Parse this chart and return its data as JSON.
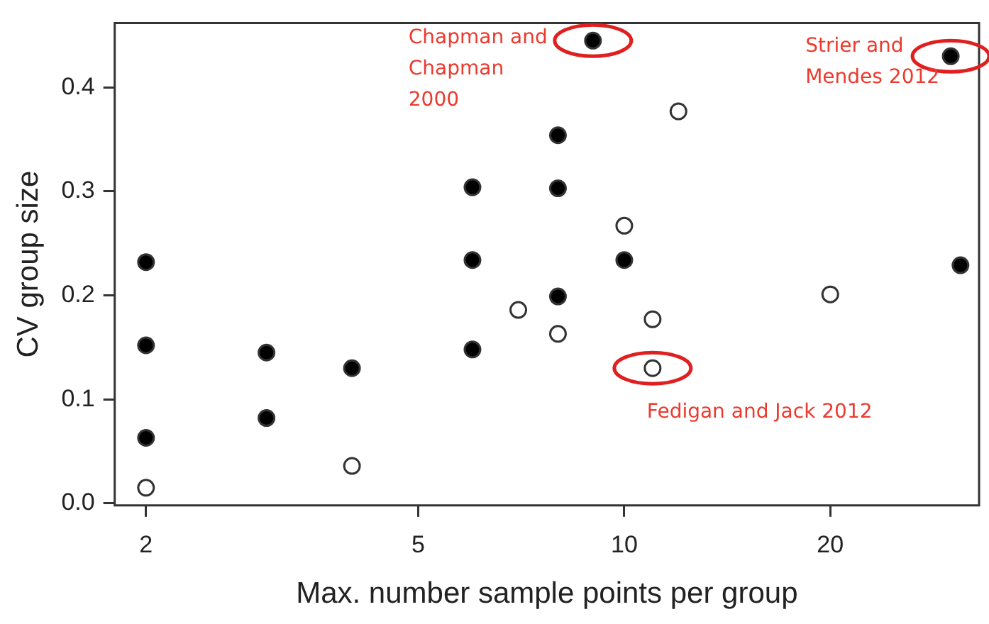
{
  "chart_data": {
    "type": "scatter",
    "xlabel": "Max. number sample points per group",
    "ylabel": "CV group size",
    "log": "x",
    "marker": "circle",
    "grid": false,
    "xlim": [
      1.8,
      33
    ],
    "xticks": [
      2,
      5,
      10,
      20
    ],
    "ylim": [
      -0.002,
      0.462
    ],
    "yticks": [
      {
        "value": 0,
        "label": "0.0"
      },
      {
        "value": 0.1,
        "label": "0.1"
      },
      {
        "value": 0.2,
        "label": "0.2"
      },
      {
        "value": 0.3,
        "label": "0.3"
      },
      {
        "value": 0.4,
        "label": "0.4"
      }
    ],
    "series": [
      {
        "color": "#000000",
        "x": [
          2,
          2,
          2,
          3,
          3,
          4,
          6,
          6,
          6,
          8,
          8,
          8,
          9,
          10,
          30,
          31
        ],
        "values": [
          0.232,
          0.152,
          0.063,
          0.145,
          0.082,
          0.13,
          0.304,
          0.234,
          0.148,
          0.354,
          0.303,
          0.199,
          0.445,
          0.234,
          0.43,
          0.229
        ]
      },
      {
        "color": "#ffffff",
        "x": [
          2,
          4,
          7,
          8,
          12,
          10,
          11,
          11,
          20
        ],
        "values": [
          0.015,
          0.036,
          0.186,
          0.163,
          0.377,
          0.267,
          0.177,
          0.13,
          0.201
        ]
      }
    ],
    "annotations": [
      {
        "text": "Chapman and Chapman 2000",
        "x": 9,
        "y": 0.445
      },
      {
        "text": "Strier and Mendes 2012",
        "x": 30,
        "y": 0.43
      },
      {
        "text": "Fedigan and Jack 2012",
        "x": 11,
        "y": 0.13
      }
    ]
  }
}
